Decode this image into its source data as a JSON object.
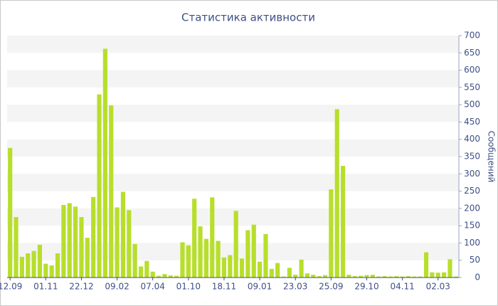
{
  "chart_data": {
    "type": "bar",
    "title": "Статистика активности",
    "y_axis_label": "Сообщений",
    "categories": [
      "12.09",
      null,
      null,
      null,
      null,
      null,
      "01.11",
      null,
      null,
      null,
      null,
      null,
      "22.12",
      null,
      null,
      null,
      null,
      null,
      "09.02",
      null,
      null,
      null,
      null,
      null,
      "07.04",
      null,
      null,
      null,
      null,
      null,
      "01.10",
      null,
      null,
      null,
      null,
      null,
      "18.11",
      null,
      null,
      null,
      null,
      null,
      "09.01",
      null,
      null,
      null,
      null,
      null,
      "23.03",
      null,
      null,
      null,
      null,
      null,
      "25.09",
      null,
      null,
      null,
      null,
      null,
      "29.10",
      null,
      null,
      null,
      null,
      null,
      "04.11",
      null,
      null,
      null,
      null,
      null,
      "02.03",
      null,
      null,
      null
    ],
    "values": [
      375,
      175,
      60,
      70,
      77,
      95,
      40,
      35,
      70,
      210,
      215,
      205,
      175,
      115,
      233,
      530,
      662,
      498,
      203,
      248,
      195,
      97,
      32,
      48,
      17,
      5,
      10,
      6,
      5,
      102,
      93,
      228,
      148,
      112,
      232,
      106,
      58,
      65,
      193,
      55,
      137,
      153,
      46,
      126,
      25,
      42,
      3,
      28,
      8,
      52,
      12,
      8,
      4,
      7,
      255,
      487,
      323,
      8,
      4,
      5,
      7,
      8,
      3,
      4,
      3,
      4,
      3,
      4,
      3,
      3,
      73,
      15,
      14,
      15,
      53,
      3
    ],
    "color": "#b8de2c",
    "ylim": [
      0,
      700
    ],
    "yticks": [
      0,
      50,
      100,
      150,
      200,
      250,
      300,
      350,
      400,
      450,
      500,
      550,
      600,
      650,
      700
    ],
    "grid": true
  }
}
